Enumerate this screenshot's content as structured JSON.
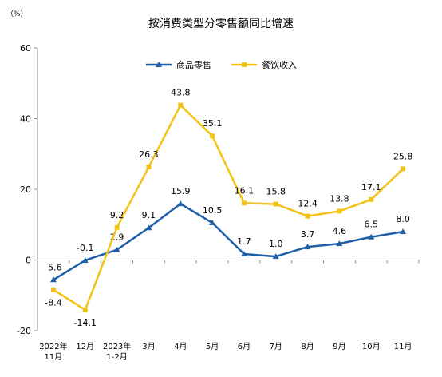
{
  "chart_data": {
    "type": "line",
    "title": "按消费类型分零售额同比增速",
    "unit_label": "（%）",
    "ylim": [
      -20,
      60
    ],
    "yticks": [
      -20,
      0,
      20,
      40,
      60
    ],
    "grid": false,
    "legend_position": "top",
    "categories": [
      [
        "2022年",
        "11月"
      ],
      [
        "12月"
      ],
      [
        "2023年",
        "1-2月"
      ],
      [
        "3月"
      ],
      [
        "4月"
      ],
      [
        "5月"
      ],
      [
        "6月"
      ],
      [
        "7月"
      ],
      [
        "8月"
      ],
      [
        "9月"
      ],
      [
        "10月"
      ],
      [
        "11月"
      ]
    ],
    "series": [
      {
        "name": "商品零售",
        "color": "#1f5fa8",
        "marker": "triangle",
        "values": [
          -5.6,
          -0.1,
          2.9,
          9.1,
          15.9,
          10.5,
          1.7,
          1.0,
          3.7,
          4.6,
          6.5,
          8.0
        ],
        "labels": [
          "-5.6",
          "-0.1",
          "2.9",
          "9.1",
          "15.9",
          "10.5",
          "1.7",
          "1.0",
          "3.7",
          "4.6",
          "6.5",
          "8.0"
        ]
      },
      {
        "name": "餐饮收入",
        "color": "#f2c314",
        "marker": "square",
        "values": [
          -8.4,
          -14.1,
          9.2,
          26.3,
          43.8,
          35.1,
          16.1,
          15.8,
          12.4,
          13.8,
          17.1,
          25.8
        ],
        "labels": [
          "-8.4",
          "-14.1",
          "9.2",
          "26.3",
          "43.8",
          "35.1",
          "16.1",
          "15.8",
          "12.4",
          "13.8",
          "17.1",
          "25.8"
        ]
      }
    ]
  }
}
